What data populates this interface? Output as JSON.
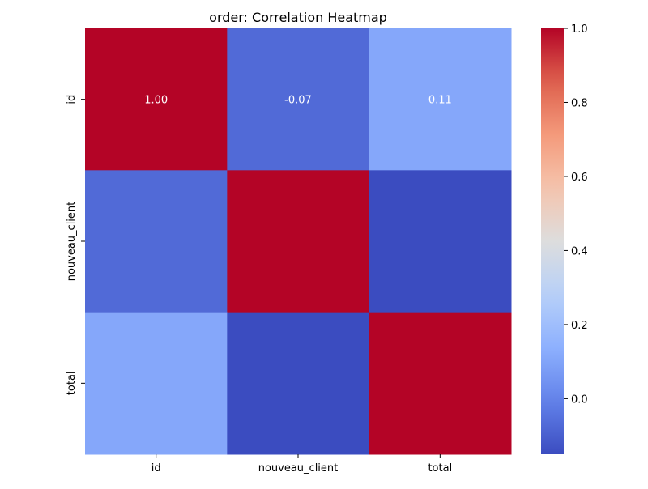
{
  "chart_data": {
    "type": "heatmap",
    "title": "order: Correlation Heatmap",
    "xlabel": "",
    "ylabel": "",
    "x_categories": [
      "id",
      "nouveau_client",
      "total"
    ],
    "y_categories": [
      "id",
      "nouveau_client",
      "total"
    ],
    "values": [
      [
        1.0,
        -0.07,
        0.11
      ],
      [
        -0.07,
        1.0,
        -0.15
      ],
      [
        0.11,
        -0.15,
        1.0
      ]
    ],
    "cell_labels": [
      [
        "1.00",
        "-0.07",
        "0.11"
      ],
      [
        "",
        "",
        ""
      ],
      [
        "",
        "",
        ""
      ]
    ],
    "colormap": "coolwarm",
    "colorbar": {
      "min": -0.15,
      "max": 1.0,
      "ticks": [
        0.0,
        0.2,
        0.4,
        0.6,
        0.8,
        1.0
      ],
      "tick_labels": [
        "0.0",
        "0.2",
        "0.4",
        "0.6",
        "0.8",
        "1.0"
      ]
    },
    "grid": false
  }
}
